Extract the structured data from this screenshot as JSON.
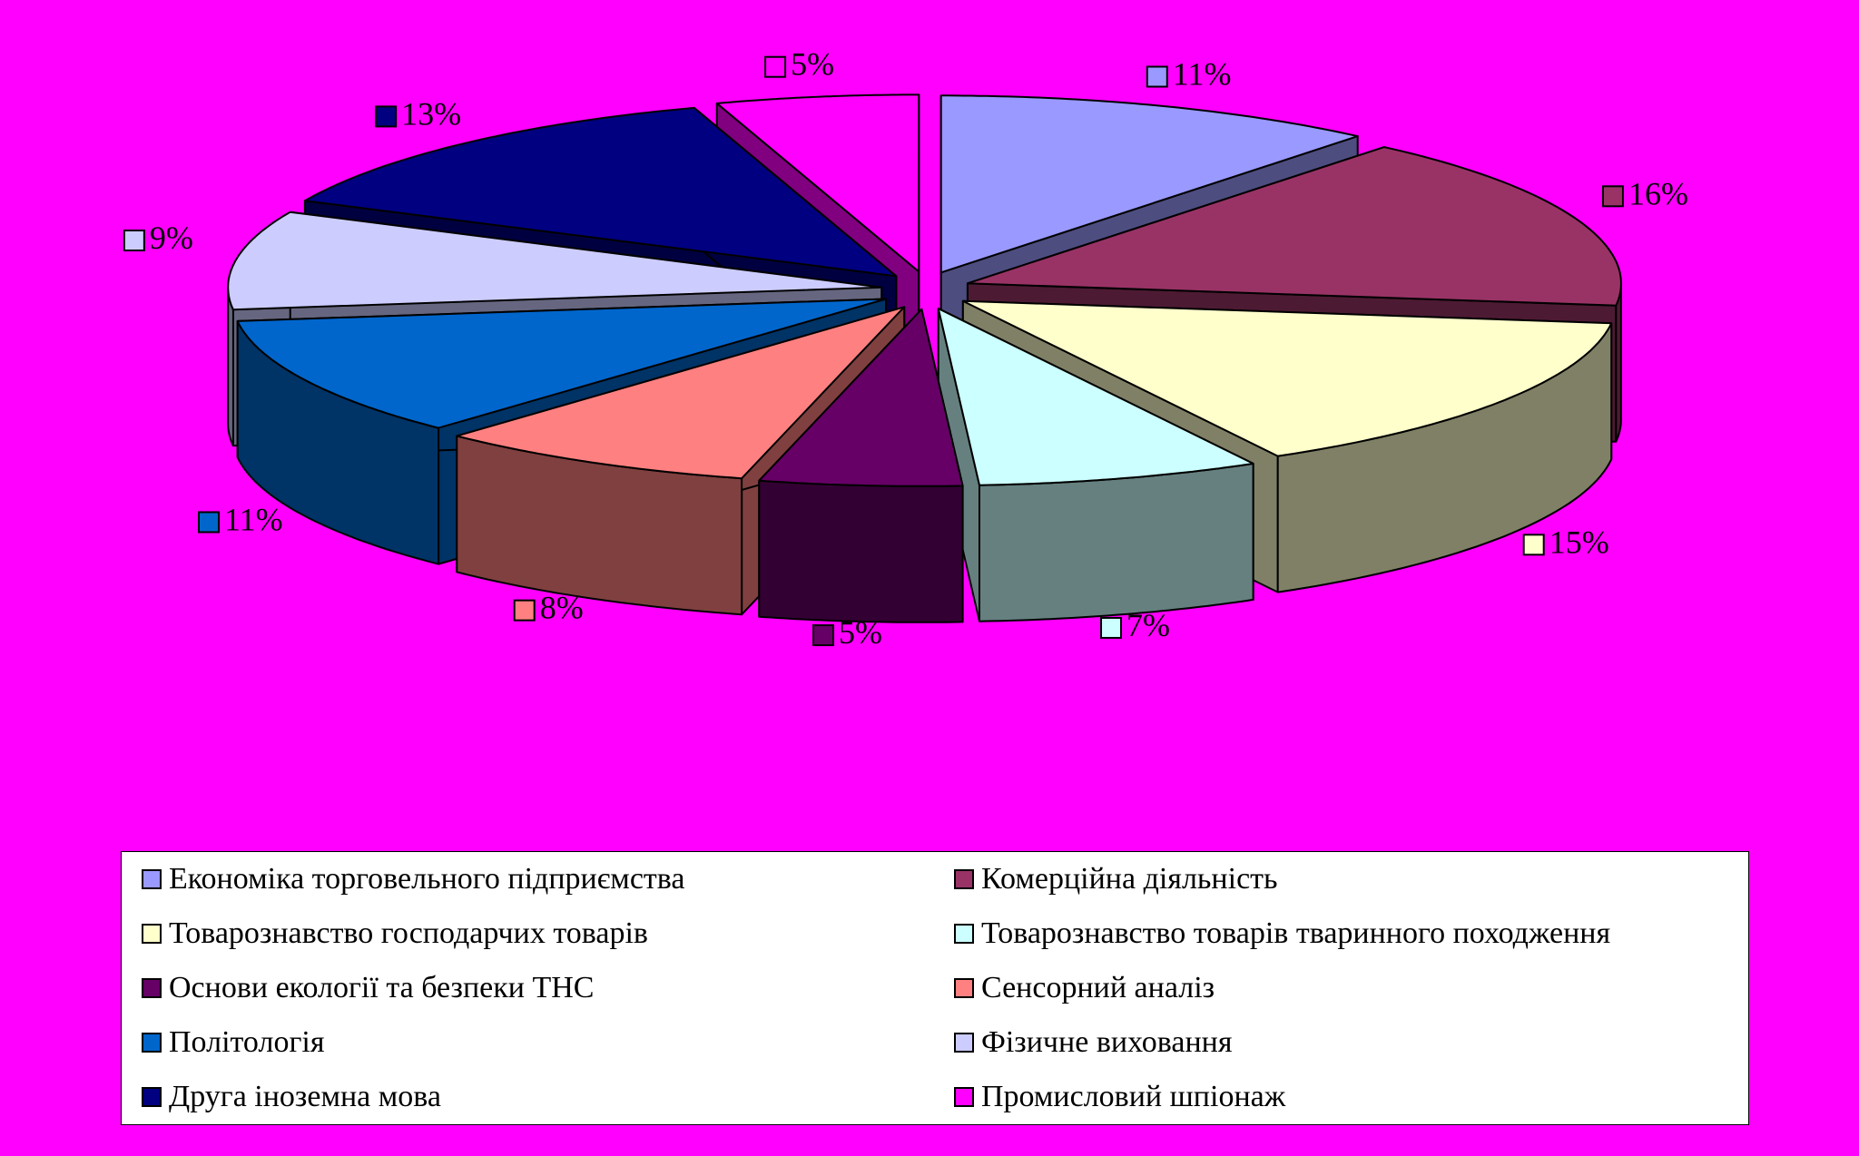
{
  "chart_data": {
    "type": "pie",
    "style": "3d-exploded",
    "background": "#ff00ff",
    "slices": [
      {
        "label": "Економіка торговельного підприємства",
        "value": 11,
        "display": "11%",
        "color": "#9999ff",
        "side": "#4d4d80"
      },
      {
        "label": "Комерційна діяльність",
        "value": 16,
        "display": "16%",
        "color": "#993366",
        "side": "#4d1a33"
      },
      {
        "label": "Товарознавство господарчих товарів",
        "value": 15,
        "display": "15%",
        "color": "#ffffcc",
        "side": "#808066"
      },
      {
        "label": "Товарознавство товарів тваринного походження",
        "value": 7,
        "display": "7%",
        "color": "#ccffff",
        "side": "#668080"
      },
      {
        "label": "Основи екології та безпеки ТНС",
        "value": 5,
        "display": "5%",
        "color": "#660066",
        "side": "#330033"
      },
      {
        "label": "Сенсорний аналіз",
        "value": 8,
        "display": "8%",
        "color": "#ff8080",
        "side": "#804040"
      },
      {
        "label": "Політологія",
        "value": 11,
        "display": "11%",
        "color": "#0066cc",
        "side": "#003366"
      },
      {
        "label": "Фізичне виховання",
        "value": 9,
        "display": "9%",
        "color": "#ccccff",
        "side": "#666680"
      },
      {
        "label": "Друга іноземна мова",
        "value": 13,
        "display": "13%",
        "color": "#000080",
        "side": "#000040"
      },
      {
        "label": "Промисловий шпіонаж",
        "value": 5,
        "display": "5%",
        "color": "#ff00ff",
        "side": "#800080"
      }
    ],
    "legend_position": "bottom",
    "legend_columns": 2
  }
}
